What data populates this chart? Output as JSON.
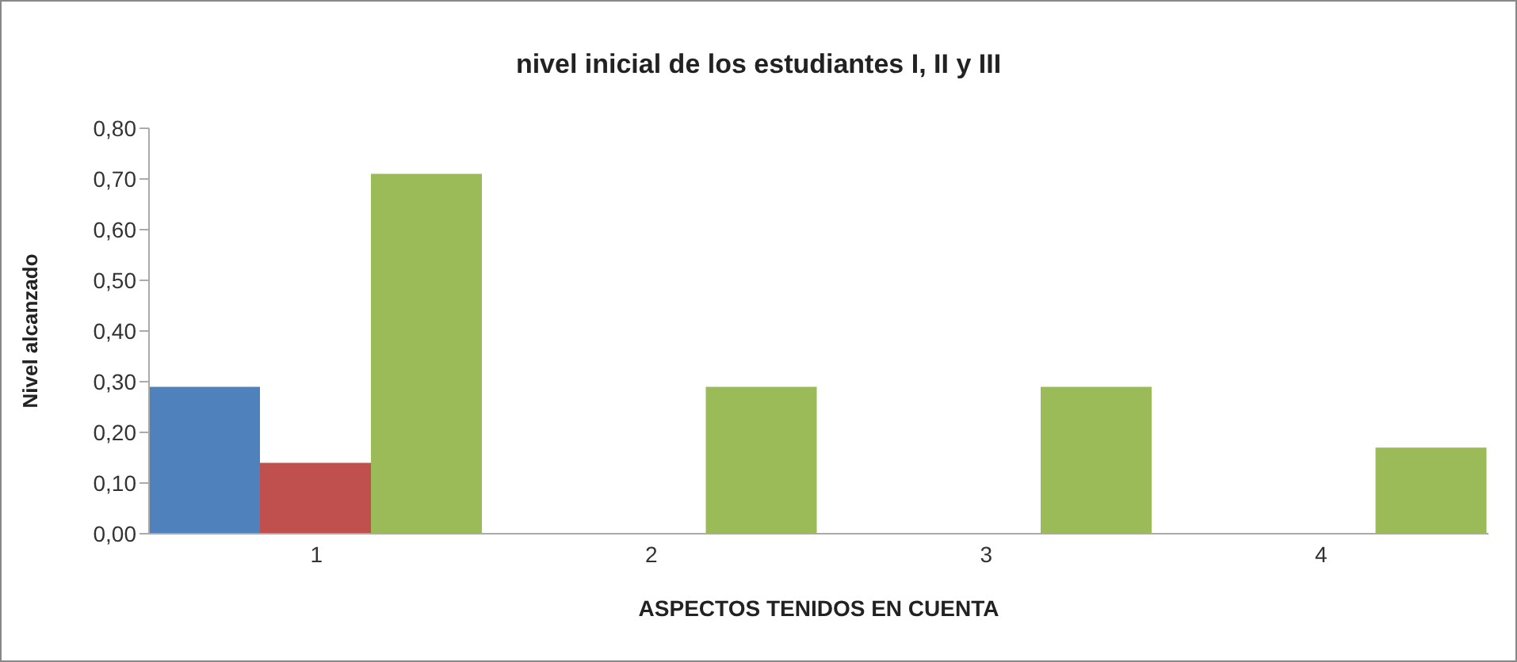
{
  "chart_data": {
    "type": "bar",
    "title": "nivel inicial de los estudiantes I, II y III",
    "xlabel": "ASPECTOS TENIDOS EN CUENTA",
    "ylabel": "Nivel alcanzado",
    "categories": [
      "1",
      "2",
      "3",
      "4"
    ],
    "series": [
      {
        "color": "#4f81bd",
        "values": [
          0.29,
          0,
          0,
          0
        ]
      },
      {
        "color": "#c0504d",
        "values": [
          0.14,
          0,
          0,
          0
        ]
      },
      {
        "color": "#9bbb59",
        "values": [
          0.71,
          0.29,
          0.29,
          0.17
        ]
      }
    ],
    "ylim": [
      0,
      0.8
    ],
    "yticks": [
      {
        "value": 0,
        "label": "0,00"
      },
      {
        "value": 0.1,
        "label": "0,10"
      },
      {
        "value": 0.2,
        "label": "0,20"
      },
      {
        "value": 0.3,
        "label": "0,30"
      },
      {
        "value": 0.4,
        "label": "0,40"
      },
      {
        "value": 0.5,
        "label": "0,50"
      },
      {
        "value": 0.6,
        "label": "0,60"
      },
      {
        "value": 0.7,
        "label": "0,70"
      },
      {
        "value": 0.8,
        "label": "0,80"
      }
    ],
    "grid": false,
    "legend": false
  }
}
